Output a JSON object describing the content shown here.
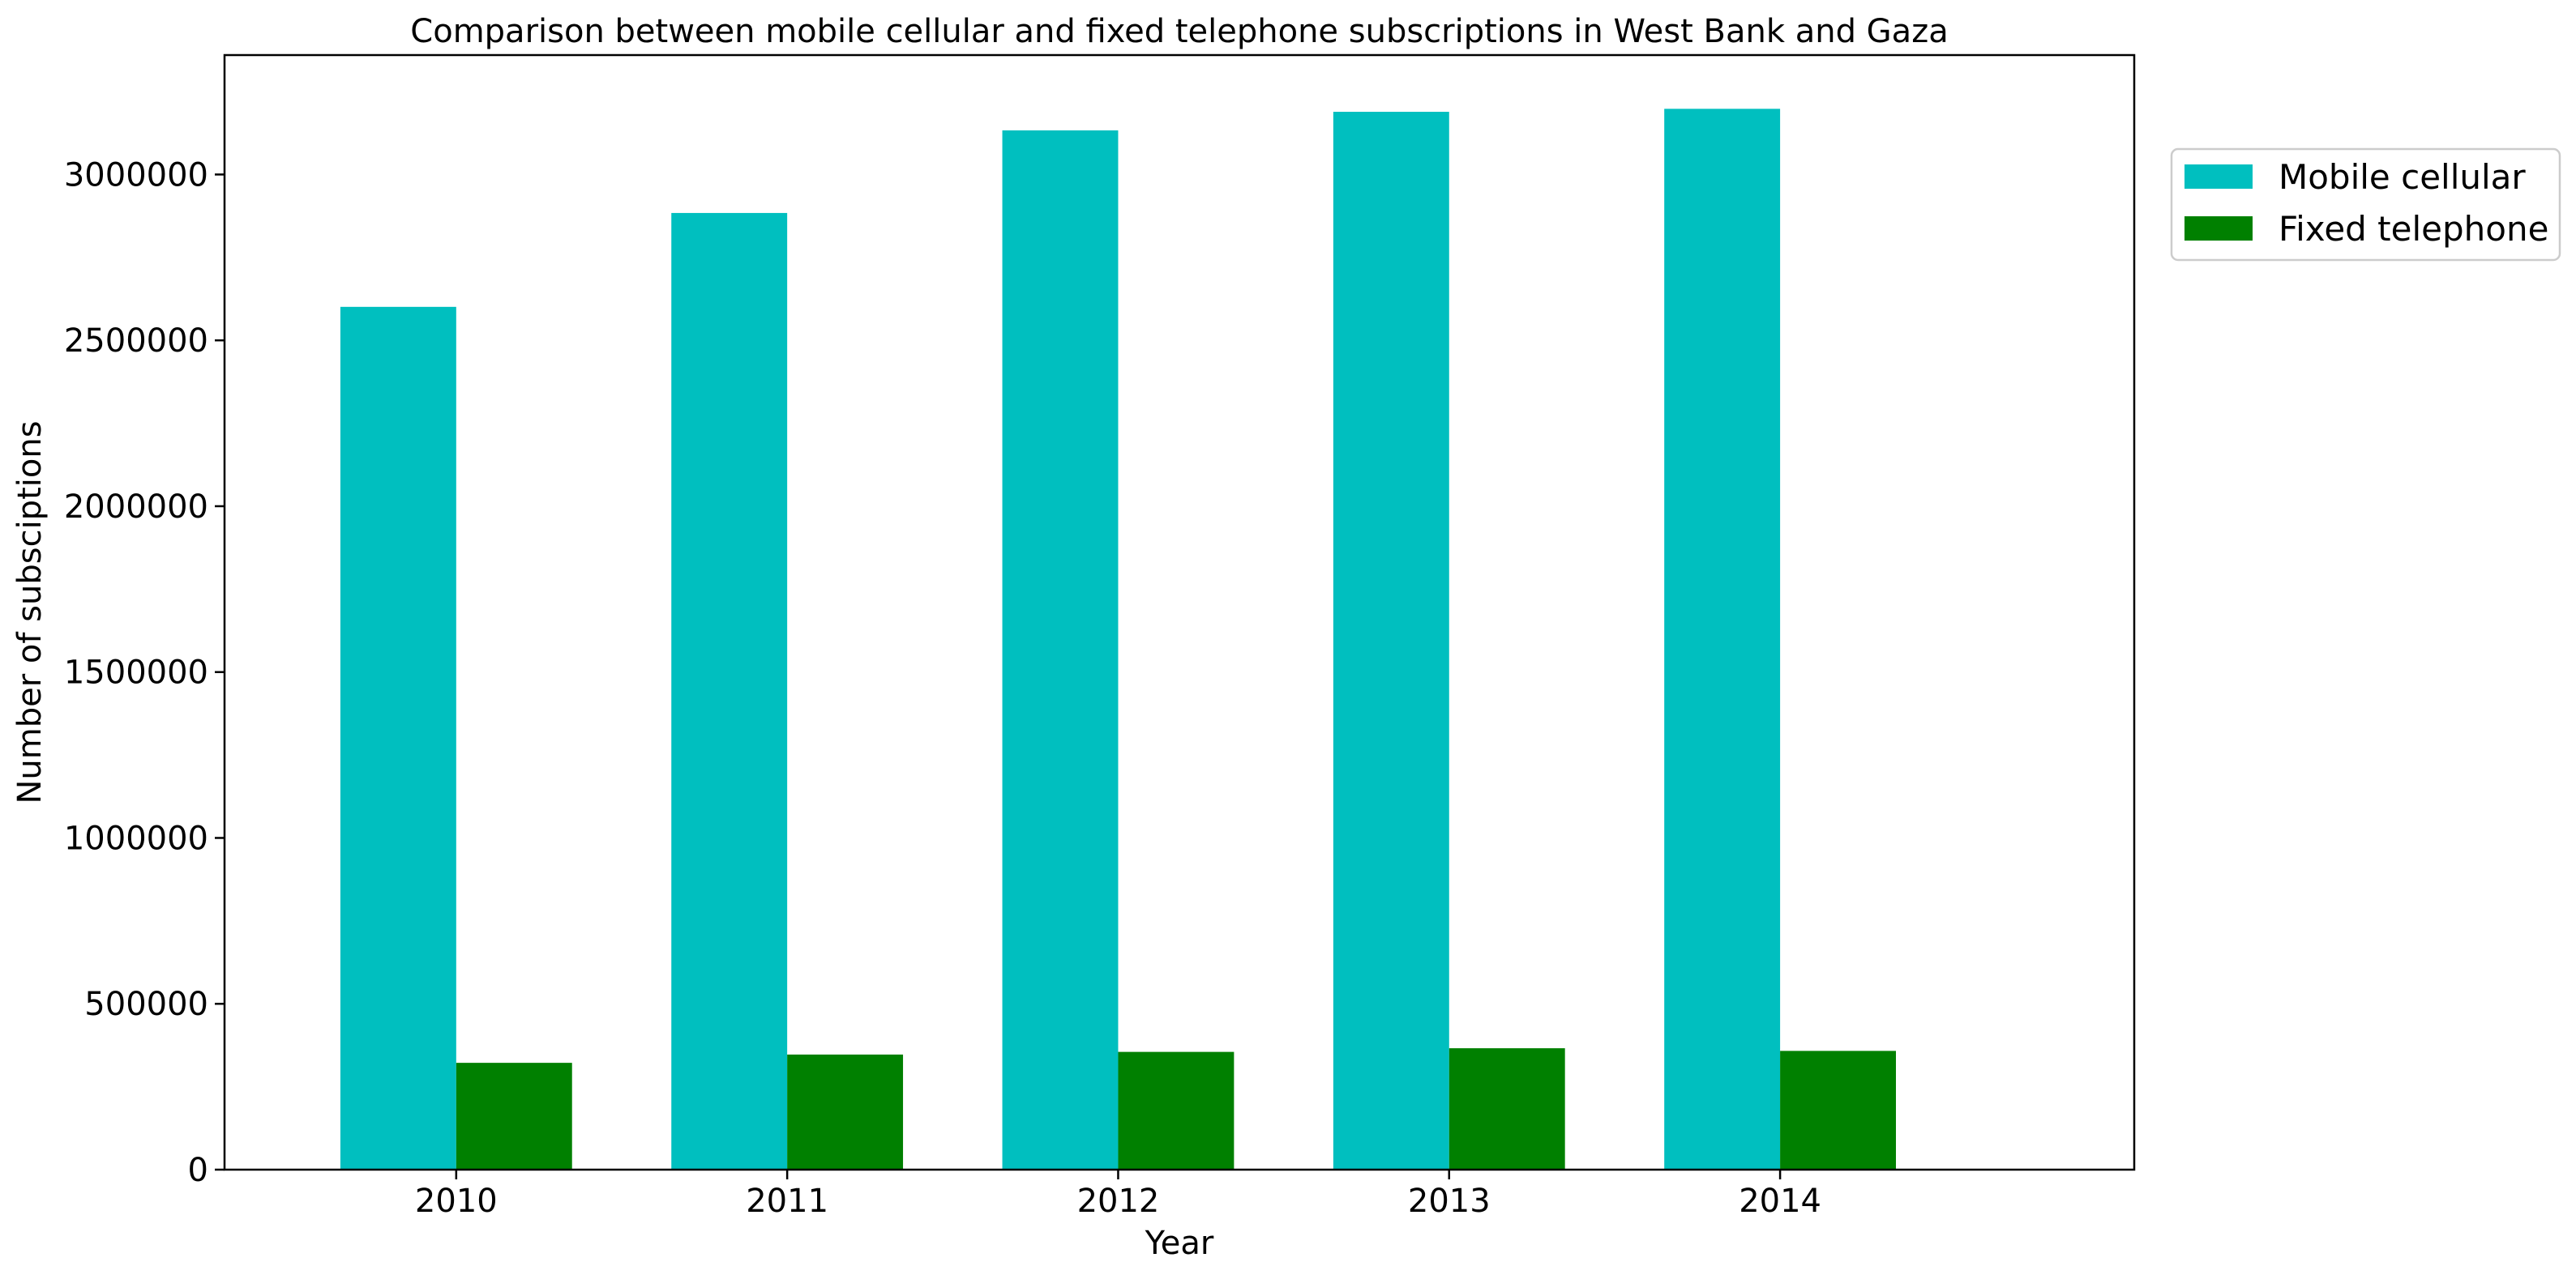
{
  "chart_data": {
    "type": "bar",
    "title": "Comparison between mobile cellular and fixed telephone subscriptions in West Bank and Gaza",
    "xlabel": "Year",
    "ylabel": "Number of subsciptions",
    "categories": [
      "2010",
      "2011",
      "2012",
      "2013",
      "2014"
    ],
    "series": [
      {
        "name": "Mobile cellular",
        "color": "#00bfbf",
        "values": [
          2601000,
          2884000,
          3133000,
          3189000,
          3198000
        ]
      },
      {
        "name": "Fixed telephone",
        "color": "#008000",
        "values": [
          322000,
          347000,
          355000,
          366000,
          358000
        ]
      }
    ],
    "ylim": [
      0,
      3360000
    ],
    "yticks": [
      0,
      500000,
      1000000,
      1500000,
      2000000,
      2500000,
      3000000
    ],
    "ytick_labels": [
      "0",
      "500000",
      "1000000",
      "1500000",
      "2000000",
      "2500000",
      "3000000"
    ],
    "grid": false,
    "legend_position": "outside top-right"
  }
}
